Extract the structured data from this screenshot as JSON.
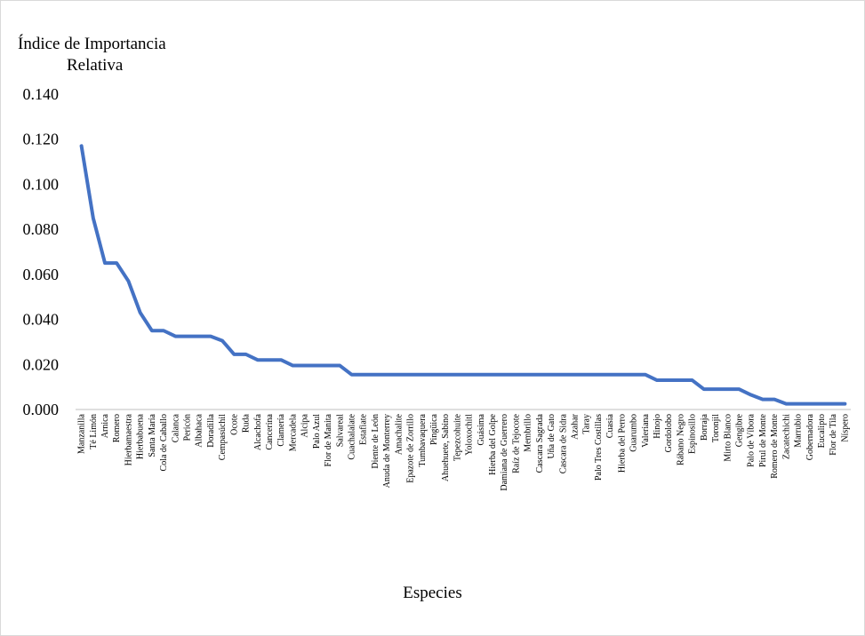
{
  "chart_data": {
    "type": "line",
    "ylabel_line1": "Índice de Importancia",
    "ylabel_line2": "Relativa",
    "xlabel": "Especies",
    "ylim": [
      0,
      0.14
    ],
    "yticks": [
      "0.000",
      "0.020",
      "0.040",
      "0.060",
      "0.080",
      "0.100",
      "0.120",
      "0.140"
    ],
    "grid": false,
    "line_color": "#4472C4",
    "categories": [
      "Manzanilla",
      "Té Limón",
      "Arnica",
      "Romero",
      "Hierbamaestra",
      "Hierbabuena",
      "Santa María",
      "Cola de Caballo",
      "Calanca",
      "Pericón",
      "Albahaca",
      "Doradilla",
      "Cempasúchil",
      "Ocote",
      "Ruda",
      "Alcachofa",
      "Cancerina",
      "Clamería",
      "Mercadela",
      "Alcipa",
      "Palo Azul",
      "Flor de Manita",
      "Salvareal",
      "Cuachalalate",
      "Estafiate",
      "Diente de León",
      "Anuda de Monterrey",
      "Amachalite",
      "Epazote de Zorrillo",
      "Tumbavaquera",
      "Pingüica",
      "Ahuehuete, Sabino",
      "Tepezcohuite",
      "Yoloxochitl",
      "Guásima",
      "Hierba del Golpe",
      "Damiana de Guerrero",
      "Raíz de Tejocote",
      "Membrillo",
      "Cascara Sagrada",
      "Uña de Gato",
      "Cascara de Sidra",
      "Azahar",
      "Taray",
      "Palo Tres Costillas",
      "Cuasia",
      "Hierba del Perro",
      "Guarumbo",
      "Valeriana",
      "Hinojo",
      "Gordolobo",
      "Rábano Negro",
      "Espinosillo",
      "Borraja",
      "Toronjil",
      "Mirto Blanco",
      "Gengibre",
      "Palo de Víbora",
      "Pirul de Monte",
      "Romero de Monte",
      "Zacatechichi",
      "Marrubio",
      "Gobernadora",
      "Eucalipto",
      "Flor de Tila",
      "Níspero"
    ],
    "values": [
      0.117,
      0.085,
      0.065,
      0.065,
      0.057,
      0.043,
      0.035,
      0.035,
      0.0325,
      0.0325,
      0.0325,
      0.0325,
      0.0305,
      0.0245,
      0.0245,
      0.022,
      0.022,
      0.022,
      0.0195,
      0.0195,
      0.0195,
      0.0195,
      0.0195,
      0.0155,
      0.0155,
      0.0155,
      0.0155,
      0.0155,
      0.0155,
      0.0155,
      0.0155,
      0.0155,
      0.0155,
      0.0155,
      0.0155,
      0.0155,
      0.0155,
      0.0155,
      0.0155,
      0.0155,
      0.0155,
      0.0155,
      0.0155,
      0.0155,
      0.0155,
      0.0155,
      0.0155,
      0.0155,
      0.0155,
      0.013,
      0.013,
      0.013,
      0.013,
      0.009,
      0.009,
      0.009,
      0.009,
      0.0065,
      0.0045,
      0.0045,
      0.0025,
      0.0025,
      0.0025,
      0.0025,
      0.0025,
      0.0025
    ]
  }
}
